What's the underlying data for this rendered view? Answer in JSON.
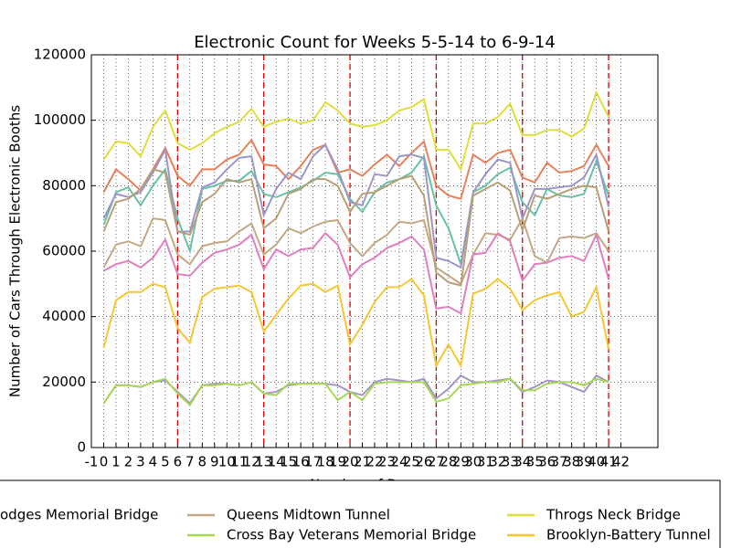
{
  "chart_data": {
    "type": "line",
    "title": "Electronic Count for Weeks 5-5-14 to 6-9-14",
    "xlabel": "Number of Days",
    "ylabel": "Number of Cars Through Electronic Booths",
    "x": [
      0,
      1,
      2,
      3,
      4,
      5,
      6,
      7,
      8,
      9,
      10,
      11,
      12,
      13,
      14,
      15,
      16,
      17,
      18,
      19,
      20,
      21,
      22,
      23,
      24,
      25,
      26,
      27,
      28,
      29,
      30,
      31,
      32,
      33,
      34,
      35,
      36,
      37,
      38,
      39,
      40,
      41
    ],
    "xlim": [
      -1,
      45
    ],
    "ylim": [
      0,
      120000
    ],
    "xticks": [
      -1,
      0,
      1,
      2,
      3,
      4,
      5,
      6,
      7,
      8,
      9,
      10,
      11,
      12,
      13,
      14,
      15,
      16,
      17,
      18,
      19,
      20,
      21,
      22,
      23,
      24,
      25,
      26,
      27,
      28,
      29,
      30,
      31,
      32,
      33,
      34,
      35,
      36,
      37,
      38,
      39,
      40,
      41,
      42
    ],
    "yticks": [
      0,
      20000,
      40000,
      60000,
      80000,
      100000,
      120000
    ],
    "grid": true,
    "vlines": [
      6,
      13,
      20,
      27,
      34,
      41
    ],
    "vline_color": "#dd0000",
    "legend": "lower center",
    "series": [
      {
        "name": "odges Memorial Bridge",
        "color": "#a393c8",
        "values": [
          13500,
          19000,
          19000,
          18500,
          20000,
          20500,
          17000,
          13500,
          19000,
          19500,
          19500,
          19000,
          20000,
          16500,
          17000,
          19000,
          19500,
          19500,
          19500,
          19000,
          17000,
          16000,
          20000,
          21000,
          20500,
          20000,
          21000,
          15000,
          18000,
          22000,
          20000,
          20000,
          20500,
          21000,
          17000,
          18500,
          20500,
          20000,
          18500,
          17000,
          22000,
          20000
        ]
      },
      {
        "name": "Queens Midtown Tunnel",
        "color": "#c2a882",
        "values": [
          55000,
          62000,
          63000,
          61500,
          70000,
          69500,
          59000,
          56000,
          61500,
          62500,
          63000,
          66000,
          68500,
          59000,
          62000,
          67000,
          65500,
          67500,
          69000,
          69500,
          62500,
          58500,
          62500,
          65000,
          69000,
          68500,
          69500,
          55000,
          52500,
          50000,
          59000,
          65500,
          65000,
          63500,
          70000,
          58500,
          56500,
          64000,
          64500,
          64000,
          65500,
          60000
        ]
      },
      {
        "name": "Cross Bay Veterans Memorial Bridge",
        "color": "#a6d854",
        "values": [
          13500,
          19000,
          19000,
          18500,
          20000,
          21000,
          16500,
          13000,
          19000,
          19000,
          19500,
          19000,
          20000,
          16500,
          16000,
          19500,
          19500,
          19500,
          19500,
          14500,
          17000,
          14500,
          19500,
          20000,
          20000,
          20000,
          20000,
          14000,
          15000,
          19000,
          19500,
          20000,
          20000,
          21000,
          17500,
          17500,
          19500,
          20000,
          20000,
          19000,
          21000,
          20000
        ]
      },
      {
        "name": "Throgs Neck Bridge",
        "color": "#dede3a",
        "values": [
          88000,
          93500,
          93000,
          89000,
          98000,
          103000,
          93000,
          91000,
          93000,
          96000,
          98000,
          99500,
          103500,
          98000,
          99500,
          100500,
          99000,
          100000,
          105500,
          103000,
          99000,
          98000,
          98500,
          100000,
          103000,
          104000,
          106500,
          91000,
          91000,
          85000,
          99000,
          99000,
          101000,
          105000,
          95500,
          95500,
          97000,
          97000,
          95000,
          97500,
          108500,
          101000
        ]
      },
      {
        "name": "Brooklyn-Battery Tunnel",
        "color": "#f5c631",
        "values": [
          30500,
          45000,
          47500,
          47500,
          50000,
          49000,
          36500,
          32000,
          46000,
          48500,
          49000,
          49500,
          47500,
          35500,
          40500,
          45500,
          49500,
          50000,
          47500,
          49500,
          31500,
          37500,
          44500,
          49000,
          49000,
          51500,
          46500,
          25000,
          31500,
          25000,
          47000,
          48500,
          51500,
          48500,
          42000,
          45000,
          46500,
          47500,
          40000,
          41500,
          49000,
          30000
        ]
      },
      {
        "color": "#e8805a",
        "values": [
          78000,
          85000,
          82000,
          78500,
          85000,
          91500,
          83000,
          80000,
          85000,
          85000,
          88000,
          89500,
          94000,
          86500,
          86000,
          82000,
          86000,
          91000,
          92500,
          84000,
          85000,
          83000,
          86500,
          89500,
          86000,
          90000,
          93500,
          80000,
          77000,
          76000,
          89500,
          87000,
          90000,
          91000,
          82500,
          81000,
          87000,
          84000,
          84500,
          86000,
          92500,
          86000
        ]
      },
      {
        "color": "#66c2a5",
        "values": [
          68000,
          78000,
          79500,
          74000,
          80000,
          85000,
          70000,
          60000,
          79000,
          80000,
          81500,
          81500,
          84500,
          77500,
          76500,
          78000,
          79500,
          81500,
          84000,
          83500,
          76000,
          72000,
          78000,
          81000,
          82000,
          84000,
          89000,
          74000,
          67000,
          56000,
          78000,
          80000,
          83500,
          85500,
          75000,
          71000,
          79000,
          77000,
          76500,
          77500,
          87500,
          77000
        ]
      },
      {
        "color": "#9d95c9",
        "values": [
          70000,
          77500,
          76500,
          78000,
          84000,
          91000,
          66000,
          66000,
          79500,
          81000,
          85000,
          88500,
          89000,
          71000,
          79000,
          84000,
          82000,
          89000,
          92500,
          85000,
          75000,
          74000,
          83500,
          83000,
          89000,
          89500,
          88500,
          58000,
          57000,
          55000,
          78000,
          83500,
          88000,
          87000,
          70000,
          79000,
          79000,
          79500,
          80000,
          82500,
          89500,
          73500
        ]
      },
      {
        "color": "#b89f77",
        "values": [
          66000,
          75000,
          76000,
          79000,
          85000,
          84000,
          66000,
          65000,
          75000,
          77500,
          82000,
          81000,
          82000,
          67000,
          70000,
          77500,
          79000,
          82000,
          82000,
          80000,
          72000,
          77500,
          78000,
          80000,
          82000,
          83000,
          77000,
          53500,
          50500,
          49500,
          77000,
          79000,
          81000,
          78500,
          66500,
          77000,
          76000,
          77500,
          79000,
          80000,
          79500,
          66000
        ]
      },
      {
        "color": "#e07fc0",
        "values": [
          54000,
          56000,
          57000,
          55000,
          58000,
          63500,
          53000,
          52500,
          56500,
          59500,
          60500,
          62000,
          65000,
          54500,
          60500,
          58500,
          60500,
          61000,
          65500,
          62000,
          52000,
          56000,
          58000,
          61000,
          62500,
          64500,
          60500,
          42500,
          43000,
          41000,
          59000,
          59500,
          65500,
          63000,
          51000,
          56000,
          56500,
          58000,
          58500,
          57000,
          65000,
          51500
        ]
      }
    ]
  }
}
